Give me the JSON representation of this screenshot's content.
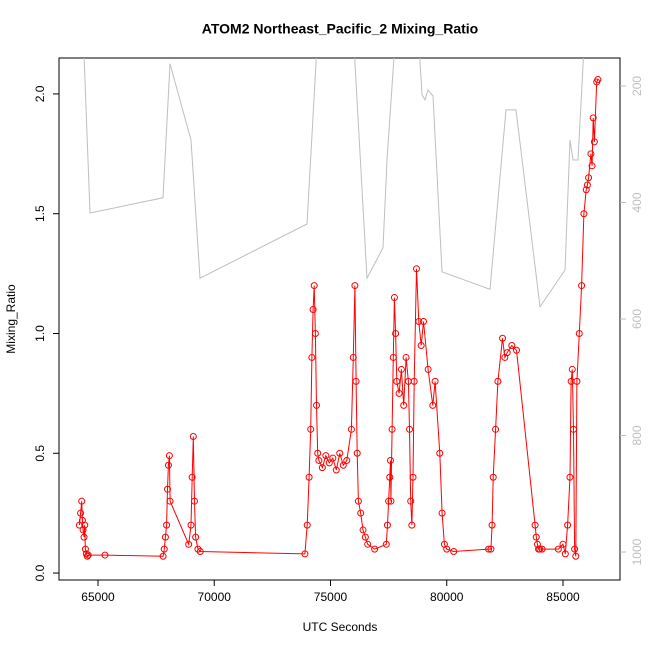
{
  "chart_data": {
    "type": "line",
    "title": "ATOM2 Northeast_Pacific_2 Mixing_Ratio",
    "xlabel": "UTC Seconds",
    "ylabel": "Mixing_Ratio",
    "xlim": [
      63323,
      87452
    ],
    "xticks": [
      65000,
      70000,
      75000,
      80000,
      85000
    ],
    "ylim": [
      -0.029,
      2.15
    ],
    "yticks": [
      {
        "value": 0,
        "label": "0.0"
      },
      0.5,
      {
        "value": 1,
        "label": "1.0"
      },
      1.5,
      {
        "value": 2,
        "label": "2.0"
      }
    ],
    "y2lim": [
      1048,
      152
    ],
    "y2ticks": [
      200,
      400,
      600,
      800,
      1000
    ],
    "series": [
      {
        "color": "#ff0000",
        "marker": "circle",
        "x": [
          64200,
          64250,
          64300,
          64330,
          64360,
          64400,
          64430,
          64460,
          64500,
          64540,
          64580,
          65300,
          67800,
          67850,
          67900,
          67950,
          67990,
          68030,
          68070,
          68100,
          68900,
          69000,
          69050,
          69100,
          69150,
          69200,
          69300,
          69400,
          73900,
          74000,
          74080,
          74150,
          74200,
          74250,
          74300,
          74350,
          74400,
          74450,
          74500,
          74650,
          74800,
          74950,
          75100,
          75250,
          75400,
          75550,
          75700,
          75900,
          75980,
          76050,
          76100,
          76150,
          76200,
          76300,
          76400,
          76500,
          76600,
          76900,
          77400,
          77450,
          77500,
          77550,
          77580,
          77600,
          77650,
          77700,
          77750,
          77800,
          77850,
          77950,
          78050,
          78150,
          78250,
          78350,
          78400,
          78450,
          78500,
          78550,
          78600,
          78700,
          78800,
          78900,
          79000,
          79200,
          79400,
          79500,
          79700,
          79800,
          79900,
          80000,
          80300,
          81800,
          81900,
          81950,
          82000,
          82100,
          82200,
          82400,
          82500,
          82600,
          82800,
          83000,
          83800,
          83850,
          83900,
          83950,
          84000,
          84100,
          84800,
          85000,
          85100,
          85200,
          85300,
          85350,
          85400,
          85450,
          85500,
          85550,
          85600,
          85700,
          85800,
          85900,
          86000,
          86050,
          86100,
          86200,
          86250,
          86300,
          86350,
          86450,
          86500
        ],
        "values": [
          0.2,
          0.25,
          0.3,
          0.22,
          0.18,
          0.15,
          0.2,
          0.1,
          0.08,
          0.07,
          0.075,
          0.075,
          0.07,
          0.1,
          0.15,
          0.2,
          0.35,
          0.45,
          0.49,
          0.3,
          0.12,
          0.2,
          0.4,
          0.57,
          0.3,
          0.15,
          0.1,
          0.09,
          0.08,
          0.2,
          0.4,
          0.6,
          0.9,
          1.1,
          1.2,
          1.0,
          0.7,
          0.5,
          0.47,
          0.44,
          0.49,
          0.46,
          0.48,
          0.43,
          0.5,
          0.45,
          0.47,
          0.6,
          0.9,
          1.2,
          0.8,
          0.5,
          0.3,
          0.25,
          0.18,
          0.15,
          0.12,
          0.1,
          0.12,
          0.2,
          0.3,
          0.4,
          0.47,
          0.3,
          0.6,
          0.9,
          1.15,
          1.0,
          0.8,
          0.75,
          0.85,
          0.7,
          0.9,
          0.8,
          0.6,
          0.3,
          0.2,
          0.4,
          0.8,
          1.27,
          1.05,
          0.95,
          1.05,
          0.85,
          0.7,
          0.8,
          0.5,
          0.25,
          0.12,
          0.1,
          0.09,
          0.1,
          0.1,
          0.2,
          0.4,
          0.6,
          0.8,
          0.98,
          0.9,
          0.92,
          0.95,
          0.93,
          0.2,
          0.15,
          0.12,
          0.1,
          0.1,
          0.1,
          0.1,
          0.12,
          0.08,
          0.2,
          0.4,
          0.8,
          0.85,
          0.6,
          0.1,
          0.07,
          0.8,
          1.0,
          1.2,
          1.5,
          1.6,
          1.62,
          1.65,
          1.75,
          1.7,
          1.9,
          1.8,
          2.05,
          2.06
        ]
      },
      {
        "color": "#bebebe",
        "axis": "y2",
        "x": [
          64355,
          64656,
          67796,
          68097,
          69000,
          69387,
          73990,
          74463,
          75968,
          76570,
          77258,
          77430,
          77817,
          78763,
          78935,
          79065,
          79194,
          79409,
          79796,
          81860,
          82548,
          82978,
          84011,
          85086,
          85301,
          85430,
          85645,
          85946
        ],
        "values": [
          100,
          418,
          392,
          162,
          293,
          530,
          437,
          100,
          100,
          530,
          478,
          327,
          100,
          100,
          215,
          224,
          207,
          217,
          519,
          549,
          241,
          241,
          579,
          516,
          293,
          327,
          327,
          100
        ]
      }
    ]
  }
}
